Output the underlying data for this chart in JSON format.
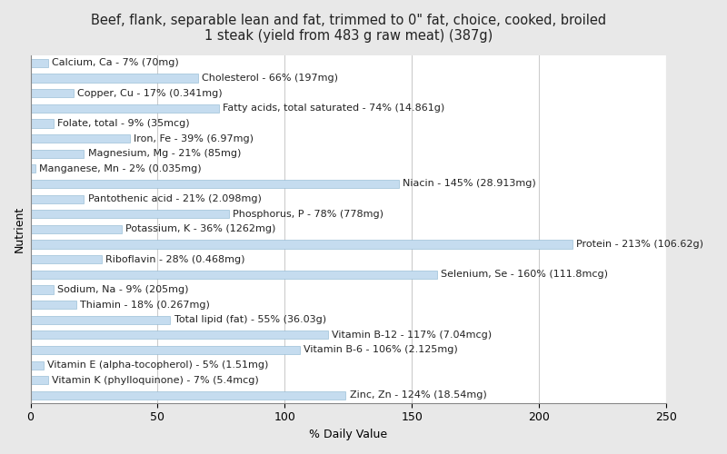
{
  "title": "Beef, flank, separable lean and fat, trimmed to 0\" fat, choice, cooked, broiled\n1 steak (yield from 483 g raw meat) (387g)",
  "xlabel": "% Daily Value",
  "ylabel": "Nutrient",
  "nutrients": [
    "Calcium, Ca - 7% (70mg)",
    "Cholesterol - 66% (197mg)",
    "Copper, Cu - 17% (0.341mg)",
    "Fatty acids, total saturated - 74% (14.861g)",
    "Folate, total - 9% (35mcg)",
    "Iron, Fe - 39% (6.97mg)",
    "Magnesium, Mg - 21% (85mg)",
    "Manganese, Mn - 2% (0.035mg)",
    "Niacin - 145% (28.913mg)",
    "Pantothenic acid - 21% (2.098mg)",
    "Phosphorus, P - 78% (778mg)",
    "Potassium, K - 36% (1262mg)",
    "Protein - 213% (106.62g)",
    "Riboflavin - 28% (0.468mg)",
    "Selenium, Se - 160% (111.8mcg)",
    "Sodium, Na - 9% (205mg)",
    "Thiamin - 18% (0.267mg)",
    "Total lipid (fat) - 55% (36.03g)",
    "Vitamin B-12 - 117% (7.04mcg)",
    "Vitamin B-6 - 106% (2.125mg)",
    "Vitamin E (alpha-tocopherol) - 5% (1.51mg)",
    "Vitamin K (phylloquinone) - 7% (5.4mcg)",
    "Zinc, Zn - 124% (18.54mg)"
  ],
  "values": [
    7,
    66,
    17,
    74,
    9,
    39,
    21,
    2,
    145,
    21,
    78,
    36,
    213,
    28,
    160,
    9,
    18,
    55,
    117,
    106,
    5,
    7,
    124
  ],
  "bar_color": "#c5dcef",
  "bar_edge_color": "#8ab4d0",
  "background_color": "#e8e8e8",
  "plot_background_color": "#ffffff",
  "title_fontsize": 10.5,
  "label_fontsize": 8,
  "tick_fontsize": 9,
  "xlim": [
    0,
    250
  ],
  "xticks": [
    0,
    50,
    100,
    150,
    200,
    250
  ],
  "bar_height": 0.55
}
